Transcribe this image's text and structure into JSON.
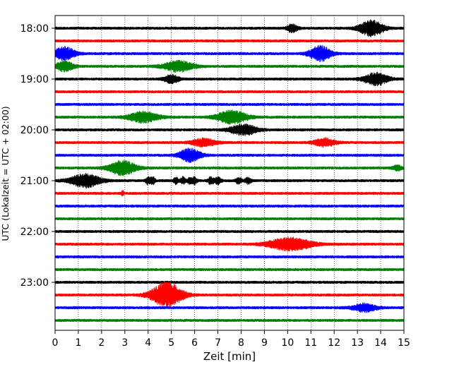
{
  "chart_data": {
    "type": "line",
    "title": "",
    "xlabel": "Zeit  [min]",
    "ylabel": "UTC (Lokalzeit = UTC + 02:00)",
    "xlim": [
      0,
      15
    ],
    "x_ticks": [
      "0",
      "1",
      "2",
      "3",
      "4",
      "5",
      "6",
      "7",
      "8",
      "9",
      "10",
      "11",
      "12",
      "13",
      "14",
      "15"
    ],
    "y_ticks": [
      "18:00",
      "19:00",
      "20:00",
      "21:00",
      "22:00",
      "23:00"
    ],
    "grid": "vertical dotted lines at each minute",
    "legend": "none",
    "colors": [
      "#000000",
      "#ff0000",
      "#0000ff",
      "#008000"
    ],
    "traces": [
      {
        "start": "18:00",
        "color": "#000000",
        "events": [
          {
            "t": 10.2,
            "amp": 0.45,
            "dur": 0.35
          },
          {
            "t": 13.6,
            "amp": 0.9,
            "dur": 0.8
          }
        ]
      },
      {
        "start": "18:15",
        "color": "#ff0000",
        "events": []
      },
      {
        "start": "18:30",
        "color": "#0000ff",
        "events": [
          {
            "t": 0.4,
            "amp": 0.75,
            "dur": 0.7
          },
          {
            "t": 11.4,
            "amp": 0.9,
            "dur": 0.7
          }
        ]
      },
      {
        "start": "18:45",
        "color": "#008000",
        "events": [
          {
            "t": 0.4,
            "amp": 0.55,
            "dur": 0.6
          },
          {
            "t": 5.3,
            "amp": 0.6,
            "dur": 1.0
          }
        ]
      },
      {
        "start": "19:00",
        "color": "#000000",
        "events": [
          {
            "t": 5.0,
            "amp": 0.45,
            "dur": 0.5
          },
          {
            "t": 13.8,
            "amp": 0.7,
            "dur": 0.8
          }
        ]
      },
      {
        "start": "19:15",
        "color": "#ff0000",
        "events": []
      },
      {
        "start": "19:30",
        "color": "#0000ff",
        "events": []
      },
      {
        "start": "19:45",
        "color": "#008000",
        "events": [
          {
            "t": 3.8,
            "amp": 0.6,
            "dur": 1.0
          },
          {
            "t": 7.6,
            "amp": 0.75,
            "dur": 1.0
          }
        ]
      },
      {
        "start": "20:00",
        "color": "#000000",
        "events": [
          {
            "t": 8.1,
            "amp": 0.6,
            "dur": 0.9
          }
        ]
      },
      {
        "start": "20:15",
        "color": "#ff0000",
        "events": [
          {
            "t": 6.4,
            "amp": 0.45,
            "dur": 0.8
          },
          {
            "t": 11.6,
            "amp": 0.45,
            "dur": 0.7
          }
        ]
      },
      {
        "start": "20:30",
        "color": "#0000ff",
        "events": [
          {
            "t": 5.8,
            "amp": 0.75,
            "dur": 0.7
          }
        ]
      },
      {
        "start": "20:45",
        "color": "#008000",
        "events": [
          {
            "t": 2.9,
            "amp": 0.8,
            "dur": 0.9
          },
          {
            "t": 14.7,
            "amp": 0.3,
            "dur": 0.3
          }
        ]
      },
      {
        "start": "21:00",
        "color": "#000000",
        "events": [
          {
            "t": 1.3,
            "amp": 0.75,
            "dur": 1.0
          },
          {
            "t": 4.0,
            "amp": 0.45,
            "dur": 0.15
          },
          {
            "t": 4.2,
            "amp": 0.45,
            "dur": 0.15
          },
          {
            "t": 5.2,
            "amp": 0.4,
            "dur": 0.15
          },
          {
            "t": 5.5,
            "amp": 0.4,
            "dur": 0.15
          },
          {
            "t": 5.8,
            "amp": 0.4,
            "dur": 0.15
          },
          {
            "t": 6.0,
            "amp": 0.4,
            "dur": 0.15
          },
          {
            "t": 6.7,
            "amp": 0.4,
            "dur": 0.2
          },
          {
            "t": 7.0,
            "amp": 0.4,
            "dur": 0.2
          },
          {
            "t": 7.9,
            "amp": 0.35,
            "dur": 0.2
          },
          {
            "t": 8.3,
            "amp": 0.35,
            "dur": 0.2
          }
        ]
      },
      {
        "start": "21:15",
        "color": "#ff0000",
        "events": [
          {
            "t": 2.9,
            "amp": 0.25,
            "dur": 0.1
          }
        ]
      },
      {
        "start": "21:30",
        "color": "#0000ff",
        "events": []
      },
      {
        "start": "21:45",
        "color": "#008000",
        "events": []
      },
      {
        "start": "22:00",
        "color": "#000000",
        "events": []
      },
      {
        "start": "22:15",
        "color": "#ff0000",
        "events": [
          {
            "t": 10.1,
            "amp": 0.75,
            "dur": 1.4
          }
        ]
      },
      {
        "start": "22:30",
        "color": "#0000ff",
        "events": []
      },
      {
        "start": "22:45",
        "color": "#008000",
        "events": []
      },
      {
        "start": "23:00",
        "color": "#000000",
        "events": []
      },
      {
        "start": "23:15",
        "color": "#ff0000",
        "events": [
          {
            "t": 4.8,
            "amp": 1.5,
            "dur": 1.0
          }
        ]
      },
      {
        "start": "23:30",
        "color": "#0000ff",
        "events": [
          {
            "t": 13.3,
            "amp": 0.45,
            "dur": 0.8
          }
        ]
      },
      {
        "start": "23:45",
        "color": "#008000",
        "events": []
      }
    ]
  }
}
